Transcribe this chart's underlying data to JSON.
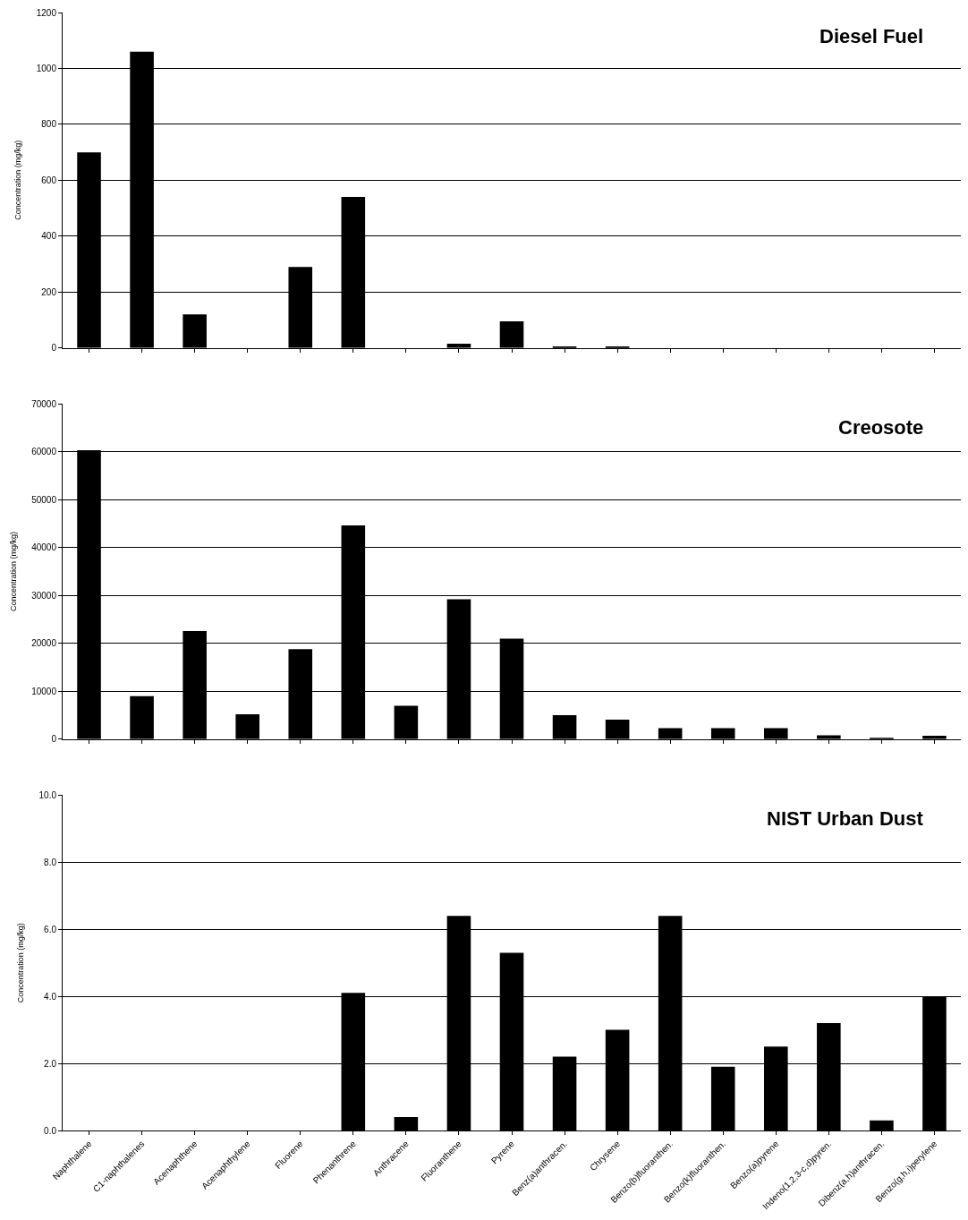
{
  "chart_data": [
    {
      "type": "bar",
      "title": "Diesel Fuel",
      "ylabel": "Concentration (mg/kg)",
      "categories": [
        null,
        null,
        null,
        null,
        null,
        null,
        null,
        null,
        null,
        null,
        null,
        null,
        null,
        null,
        null,
        null,
        null
      ],
      "values": [
        700,
        1060,
        120,
        0,
        290,
        540,
        0,
        15,
        95,
        3,
        3,
        0,
        0,
        0,
        0,
        0,
        0
      ],
      "color": "#000000",
      "ylim": [
        0,
        1200
      ],
      "yticks": [
        0,
        200,
        400,
        600,
        800,
        1000,
        1200
      ],
      "grid": "y",
      "tick_labels": "y"
    },
    {
      "type": "bar",
      "title": "Creosote",
      "ylabel": "Concentration (mg/kg)",
      "categories": [
        null,
        null,
        null,
        null,
        null,
        null,
        null,
        null,
        null,
        null,
        null,
        null,
        null,
        null,
        null,
        null,
        null
      ],
      "values": [
        60300,
        9000,
        22600,
        5200,
        18800,
        44600,
        7000,
        29200,
        21000,
        5000,
        4100,
        2300,
        2300,
        2300,
        800,
        200,
        700
      ],
      "color": "#000000",
      "ylim": [
        0,
        70000
      ],
      "yticks": [
        0,
        10000,
        20000,
        30000,
        40000,
        50000,
        60000,
        70000
      ],
      "grid": "y",
      "tick_labels": "y"
    },
    {
      "type": "bar",
      "title": "NIST Urban Dust",
      "ylabel": "Concentration (mg/kg)",
      "categories": [
        "Naphthalene",
        "C1-naphthalenes",
        "Acenaphthene",
        "Acenaphthylene",
        "Fluorene",
        "Phenanthrene",
        "Anthracene",
        "Fluoranthene",
        "Pyrene",
        "Benz(a)anthracen.",
        "Chrysene",
        "Benzo(b)fluoranthen.",
        "Benzo(k)fluoranthen.",
        "Benzo(a)pyrene",
        "Indeno(1,2,3-c,d)pyren.",
        "Dibenz(a,h)anthracen.",
        "Benzo(g,h,i)perylene"
      ],
      "values": [
        0,
        0,
        0,
        0,
        0,
        4.1,
        0.4,
        6.4,
        5.3,
        2.2,
        3.0,
        6.4,
        1.9,
        2.5,
        3.2,
        0.3,
        4.0
      ],
      "color": "#000000",
      "ylim": [
        0,
        10
      ],
      "yticks": [
        {
          "value": 0,
          "label": "0.0"
        },
        {
          "value": 2,
          "label": "2.0"
        },
        {
          "value": 4,
          "label": "4.0"
        },
        {
          "value": 6,
          "label": "6.0"
        },
        {
          "value": 8,
          "label": "8.0"
        },
        {
          "value": 10,
          "label": "10.0"
        }
      ],
      "grid": "y"
    }
  ]
}
